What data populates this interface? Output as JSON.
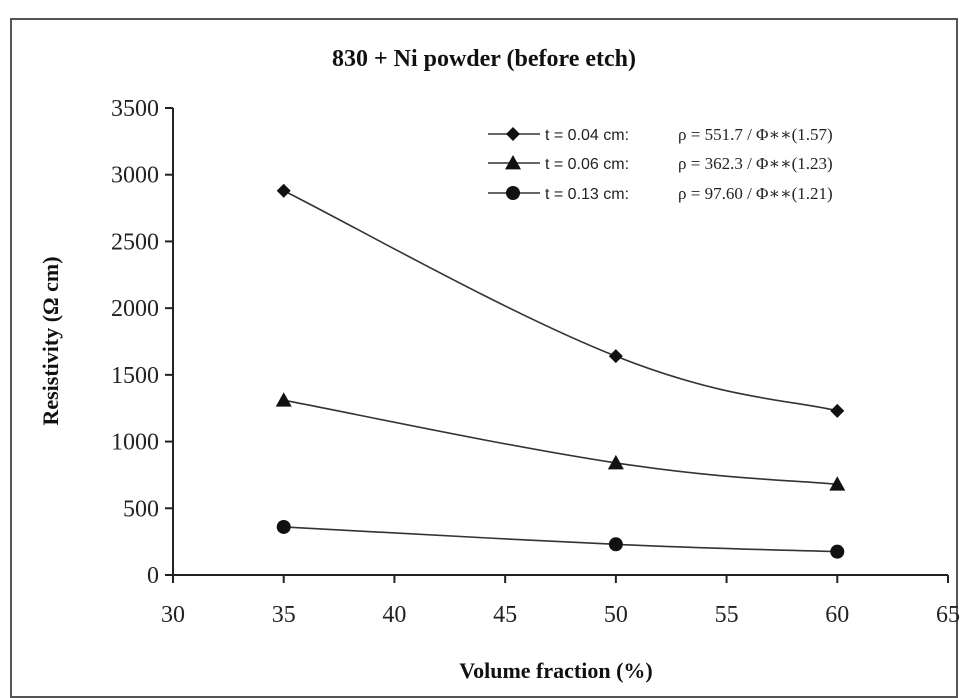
{
  "chart_data": {
    "type": "line",
    "title": "830 + Ni powder (before etch)",
    "xlabel": "Volume fraction (%)",
    "ylabel": "Resistivity (Ω cm)",
    "xlim": [
      30,
      65
    ],
    "ylim": [
      0,
      3500
    ],
    "xticks": [
      30,
      35,
      40,
      45,
      50,
      55,
      60,
      65
    ],
    "yticks": [
      0,
      500,
      1000,
      1500,
      2000,
      2500,
      3000,
      3500
    ],
    "grid": false,
    "legend_position": "top-right",
    "series": [
      {
        "name": "t = 0.04 cm:",
        "equation": "ρ = 551.7 / Φ∗∗(1.57)",
        "marker": "diamond",
        "x": [
          35,
          50,
          60
        ],
        "y": [
          2880,
          1640,
          1230
        ]
      },
      {
        "name": "t = 0.06 cm:",
        "equation": "ρ = 362.3 / Φ∗∗(1.23)",
        "marker": "triangle",
        "x": [
          35,
          50,
          60
        ],
        "y": [
          1310,
          840,
          680
        ]
      },
      {
        "name": "t = 0.13 cm:",
        "equation": "ρ = 97.60 / Φ∗∗(1.21)",
        "marker": "circle",
        "x": [
          35,
          50,
          60
        ],
        "y": [
          360,
          230,
          175
        ]
      }
    ]
  }
}
